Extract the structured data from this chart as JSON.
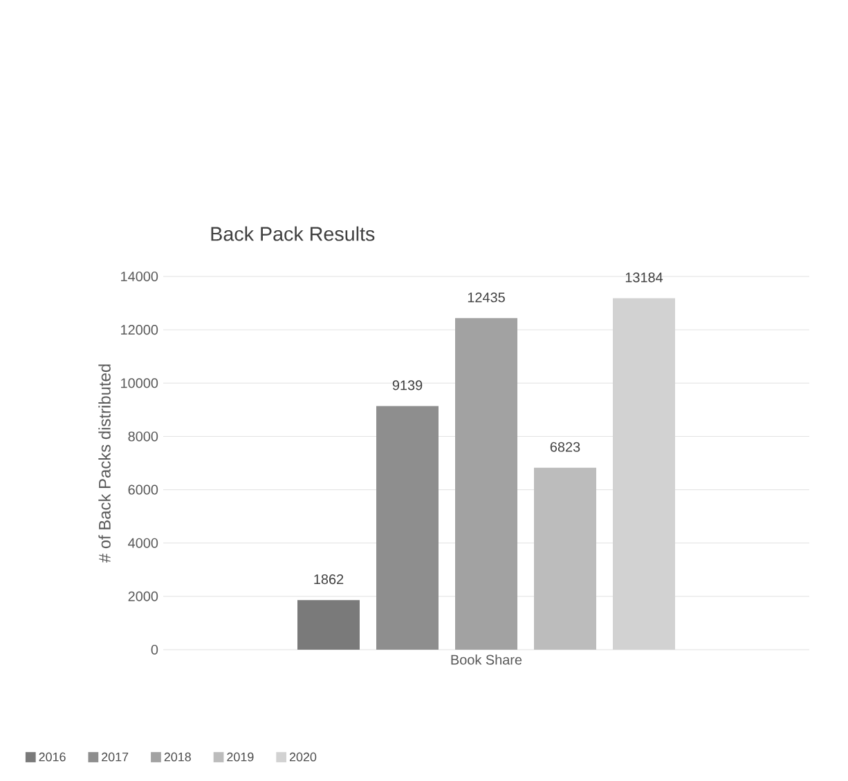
{
  "chart_data": {
    "type": "bar",
    "title": "Back Pack Results",
    "ylabel": "# of Back Packs distributed",
    "categories": [
      "Book Share"
    ],
    "series": [
      {
        "name": "2016",
        "color": "#7a7a7a",
        "values": [
          1862
        ]
      },
      {
        "name": "2017",
        "color": "#8e8e8e",
        "values": [
          9139
        ]
      },
      {
        "name": "2018",
        "color": "#a2a2a2",
        "values": [
          12435
        ]
      },
      {
        "name": "2019",
        "color": "#bcbcbc",
        "values": [
          6823
        ]
      },
      {
        "name": "2020",
        "color": "#d2d2d2",
        "values": [
          13184
        ]
      }
    ],
    "ylim": [
      0,
      14000
    ],
    "yticks": [
      0,
      2000,
      4000,
      6000,
      8000,
      10000,
      12000,
      14000
    ],
    "grid": "y",
    "legend": "bottom",
    "data_labels": true
  }
}
